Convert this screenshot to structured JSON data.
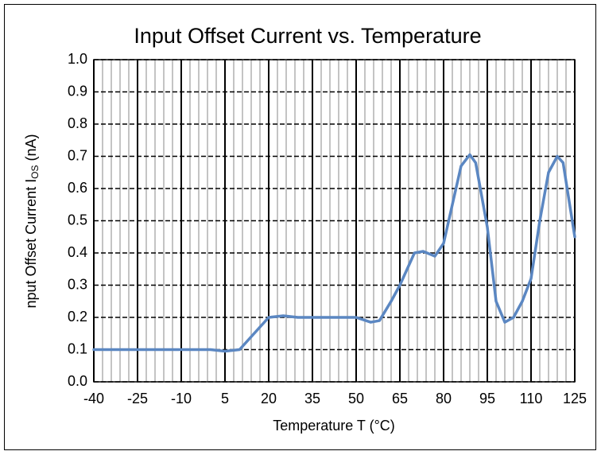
{
  "chart_data": {
    "type": "line",
    "title": "Input Offset Current vs. Temperature",
    "xlabel": "Temperature T (°C)",
    "ylabel": "nput Offset Current I",
    "ylabel_sub": "OS",
    "ylabel_end": " (nA)",
    "x": [
      -40,
      -25,
      -10,
      0,
      5,
      10,
      15,
      20,
      25,
      30,
      40,
      50,
      55,
      58,
      62,
      65,
      70,
      73,
      77,
      80,
      83,
      86,
      89,
      91,
      95,
      98,
      101,
      104,
      107,
      110,
      113,
      116,
      119,
      121,
      125
    ],
    "series": [
      {
        "color": "#5b87c2",
        "values": [
          0.1,
          0.1,
          0.1,
          0.1,
          0.095,
          0.1,
          0.15,
          0.2,
          0.205,
          0.2,
          0.2,
          0.2,
          0.185,
          0.19,
          0.25,
          0.3,
          0.4,
          0.405,
          0.39,
          0.43,
          0.55,
          0.67,
          0.705,
          0.68,
          0.48,
          0.25,
          0.185,
          0.2,
          0.25,
          0.32,
          0.5,
          0.65,
          0.7,
          0.68,
          0.45
        ]
      }
    ],
    "xlim": [
      -40,
      125
    ],
    "xticks": [
      -40,
      -25,
      -10,
      5,
      20,
      35,
      50,
      65,
      80,
      95,
      110,
      125
    ],
    "xminor_step": 3,
    "ylim": [
      0,
      1
    ],
    "yticks": [
      {
        "value": 0,
        "label": "0.0"
      },
      0.1,
      0.2,
      0.3,
      0.4,
      0.5,
      0.6,
      0.7,
      0.8,
      0.9,
      {
        "value": 1,
        "label": "1.0"
      }
    ],
    "grid": true
  }
}
